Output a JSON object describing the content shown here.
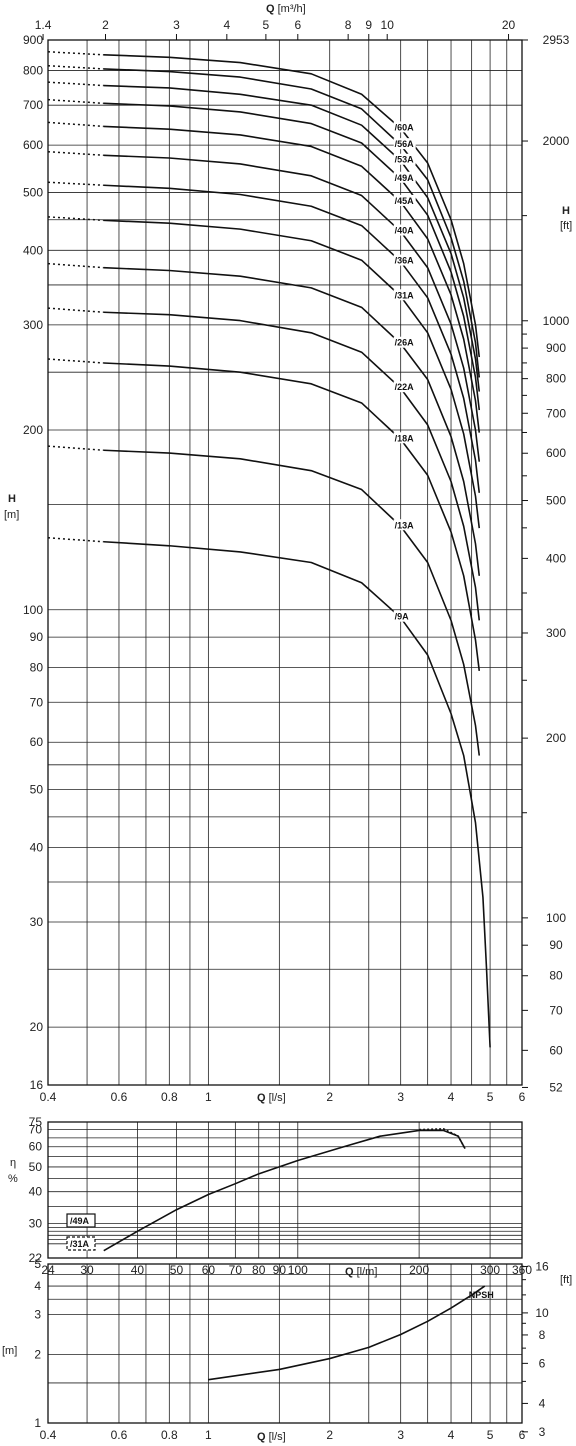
{
  "chart_data": [
    {
      "type": "line",
      "scale": "log-log",
      "x_unit_bottom": "l/s",
      "x_unit_top": "m³/h",
      "xlim": [
        0.4,
        6
      ],
      "ylim": [
        16,
        900
      ],
      "x_ticks_bottom": [
        "0.4",
        "0.6",
        "0.8",
        "1",
        "2",
        "3",
        "4",
        "5",
        "6"
      ],
      "x_ticks_top": [
        "1.4",
        "2",
        "3",
        "4",
        "5",
        "6",
        "8",
        "9",
        "10",
        "20"
      ],
      "y_ticks_left": [
        "16",
        "20",
        "30",
        "40",
        "50",
        "60",
        "70",
        "80",
        "90",
        "100",
        "200",
        "300",
        "400",
        "500",
        "600",
        "700",
        "800",
        "900"
      ],
      "y_ticks_right": [
        "52",
        "60",
        "70",
        "80",
        "90",
        "100",
        "200",
        "300",
        "400",
        "500",
        "600",
        "700",
        "800",
        "900",
        "1000",
        "2000",
        "2953"
      ],
      "xlabel": {
        "bold": "Q",
        "unit": " [l/s]"
      },
      "xlabel_top": {
        "bold": "Q",
        "unit": " [m³/h]"
      },
      "ylabel_left": {
        "bold": "H",
        "unit": "[m]"
      },
      "ylabel_right": {
        "bold": "H",
        "unit": "[ft]"
      },
      "series": [
        {
          "name": "/60A",
          "x": [
            0.4,
            0.55,
            0.8,
            1.2,
            1.8,
            2.4,
            3,
            3.5,
            4,
            4.3,
            4.6,
            4.7
          ],
          "y": [
            860,
            850,
            842,
            825,
            790,
            730,
            640,
            560,
            450,
            380,
            300,
            265
          ]
        },
        {
          "name": "/56A",
          "x": [
            0.4,
            0.55,
            0.8,
            1.2,
            1.8,
            2.4,
            3,
            3.5,
            4,
            4.3,
            4.6,
            4.7
          ],
          "y": [
            815,
            805,
            797,
            780,
            745,
            690,
            600,
            525,
            420,
            355,
            280,
            245
          ]
        },
        {
          "name": "/53A",
          "x": [
            0.4,
            0.55,
            0.8,
            1.2,
            1.8,
            2.4,
            3,
            3.5,
            4,
            4.3,
            4.6,
            4.7
          ],
          "y": [
            765,
            755,
            748,
            730,
            700,
            648,
            565,
            490,
            395,
            333,
            263,
            232
          ]
        },
        {
          "name": "/49A",
          "x": [
            0.4,
            0.55,
            0.8,
            1.2,
            1.8,
            2.4,
            3,
            3.5,
            4,
            4.3,
            4.6,
            4.7
          ],
          "y": [
            715,
            705,
            698,
            682,
            652,
            605,
            527,
            458,
            368,
            310,
            245,
            216
          ]
        },
        {
          "name": "/45A",
          "x": [
            0.4,
            0.55,
            0.8,
            1.2,
            1.8,
            2.4,
            3,
            3.5,
            4,
            4.3,
            4.6,
            4.7
          ],
          "y": [
            655,
            645,
            638,
            624,
            597,
            553,
            482,
            418,
            337,
            284,
            224,
            198
          ]
        },
        {
          "name": "/40A",
          "x": [
            0.4,
            0.55,
            0.8,
            1.2,
            1.8,
            2.4,
            3,
            3.5,
            4,
            4.3,
            4.6,
            4.7
          ],
          "y": [
            585,
            577,
            571,
            558,
            533,
            494,
            430,
            374,
            301,
            254,
            200,
            177
          ]
        },
        {
          "name": "/36A",
          "x": [
            0.4,
            0.55,
            0.8,
            1.2,
            1.8,
            2.4,
            3,
            3.5,
            4,
            4.3,
            4.6,
            4.7
          ],
          "y": [
            520,
            514,
            508,
            496,
            474,
            440,
            383,
            333,
            268,
            226,
            178,
            157
          ]
        },
        {
          "name": "/31A",
          "x": [
            0.4,
            0.55,
            0.8,
            1.2,
            1.8,
            2.4,
            3,
            3.5,
            4,
            4.3,
            4.6,
            4.7
          ],
          "y": [
            455,
            449,
            444,
            434,
            415,
            385,
            335,
            291,
            234,
            197,
            155,
            137
          ]
        },
        {
          "name": "/26A",
          "x": [
            0.4,
            0.55,
            0.8,
            1.2,
            1.8,
            2.4,
            3,
            3.5,
            4,
            4.3,
            4.6,
            4.7
          ],
          "y": [
            380,
            374,
            370,
            362,
            346,
            321,
            279,
            243,
            195,
            164,
            129,
            114
          ]
        },
        {
          "name": "/22A",
          "x": [
            0.4,
            0.55,
            0.8,
            1.2,
            1.8,
            2.4,
            3,
            3.5,
            4,
            4.3,
            4.6,
            4.7
          ],
          "y": [
            320,
            315,
            312,
            305,
            291,
            270,
            235,
            204,
            164,
            138,
            109,
            96
          ]
        },
        {
          "name": "/18A",
          "x": [
            0.4,
            0.55,
            0.8,
            1.2,
            1.8,
            2.4,
            3,
            3.5,
            4,
            4.3,
            4.6,
            4.7
          ],
          "y": [
            263,
            259,
            256,
            250,
            239,
            222,
            193,
            168,
            135,
            114,
            89,
            79
          ]
        },
        {
          "name": "/13A",
          "x": [
            0.4,
            0.55,
            0.8,
            1.2,
            1.8,
            2.4,
            3,
            3.5,
            4,
            4.3,
            4.6,
            4.7
          ],
          "y": [
            188,
            185,
            183,
            179,
            171,
            159,
            138,
            120,
            96,
            81,
            64,
            57
          ]
        },
        {
          "name": "/9A",
          "x": [
            0.4,
            0.55,
            0.8,
            1.2,
            1.8,
            2.4,
            3,
            3.5,
            4,
            4.3,
            4.6,
            4.8,
            4.9,
            5
          ],
          "y": [
            132,
            130,
            128,
            125,
            120,
            111,
            97,
            84,
            67,
            57,
            44,
            33,
            25,
            18.5
          ]
        }
      ]
    },
    {
      "type": "line",
      "scale": "log-log",
      "xlim": [
        24,
        360
      ],
      "ylim": [
        22,
        75
      ],
      "x_ticks": [
        "24",
        "30",
        "40",
        "50",
        "60",
        "70",
        "80",
        "90",
        "100",
        "200",
        "300",
        "360"
      ],
      "y_ticks": [
        "22",
        "30",
        "40",
        "50",
        "60",
        "70",
        "75"
      ],
      "xlabel": {
        "bold": "Q",
        "unit": " [l/m]"
      },
      "ylabel": [
        "η",
        "%"
      ],
      "series": [
        {
          "name": "/49A",
          "style": "solid",
          "x": [
            33,
            40,
            50,
            60,
            70,
            80,
            100,
            130,
            160,
            200,
            230,
            250,
            260
          ],
          "y": [
            23.5,
            28,
            34,
            39,
            43,
            47,
            53,
            60,
            66,
            69.5,
            69.5,
            66,
            59
          ]
        },
        {
          "name": "/31A",
          "style": "dashed",
          "x": [
            200,
            230,
            250,
            260
          ],
          "y": [
            70,
            70.5,
            66,
            59
          ]
        }
      ]
    },
    {
      "type": "line",
      "scale": "log-log",
      "xlim": [
        0.4,
        6
      ],
      "ylim": [
        1,
        5
      ],
      "x_ticks": [
        "0.4",
        "0.6",
        "0.8",
        "1",
        "2",
        "3",
        "4",
        "5",
        "6"
      ],
      "y_ticks_left": [
        "1",
        "2",
        "3",
        "4",
        "5"
      ],
      "y_ticks_right": [
        "3",
        "4",
        "6",
        "8",
        "10",
        "16"
      ],
      "xlabel": {
        "bold": "Q",
        "unit": " [l/s]"
      },
      "ylabel_left": "[m]",
      "ylabel_right": "[ft]",
      "series": [
        {
          "name": "NPSH",
          "x": [
            1,
            1.5,
            2,
            2.5,
            3,
            3.5,
            4,
            4.5,
            4.85
          ],
          "y": [
            1.55,
            1.72,
            1.92,
            2.15,
            2.45,
            2.8,
            3.2,
            3.65,
            4
          ]
        }
      ]
    }
  ]
}
